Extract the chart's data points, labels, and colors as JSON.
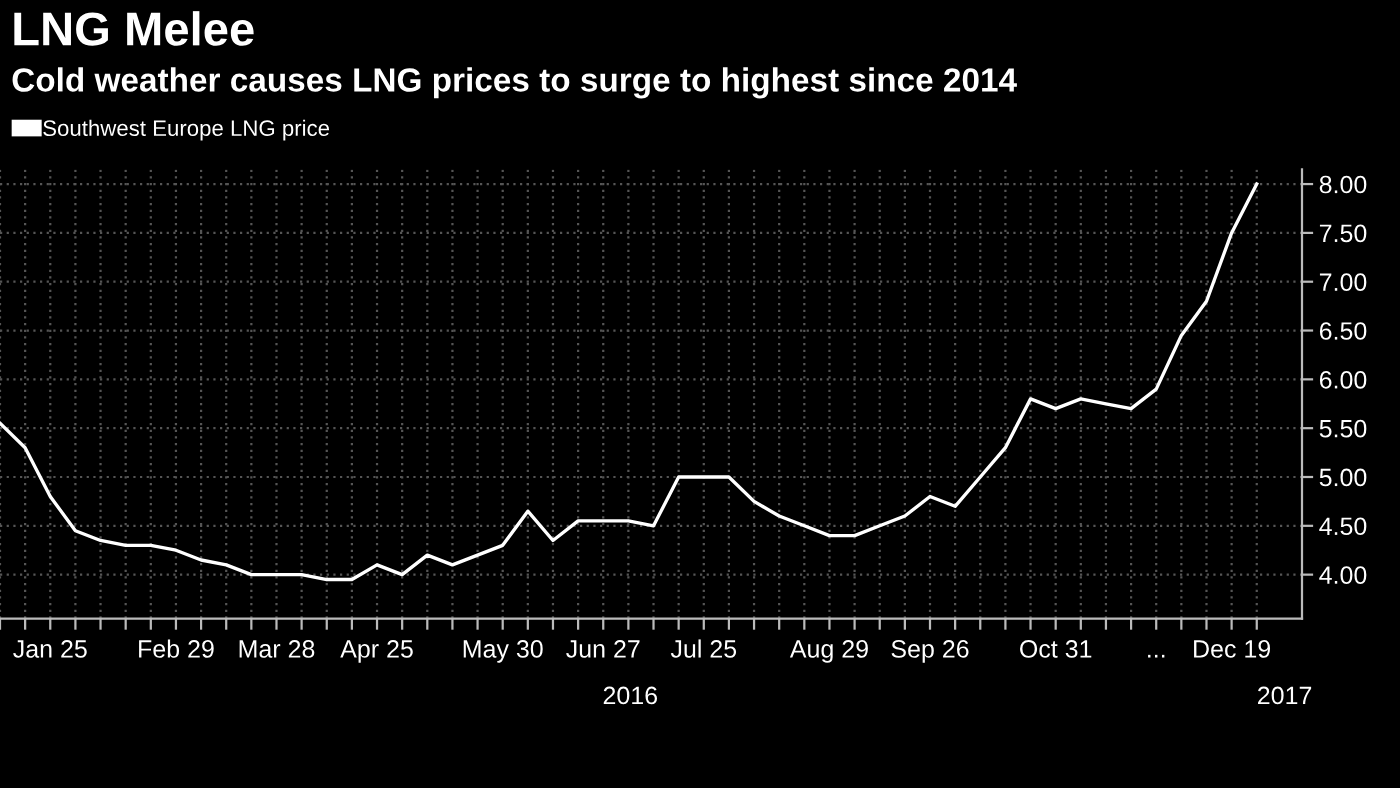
{
  "chart_data": {
    "type": "line",
    "title": "LNG Melee",
    "subtitle": "Cold weather causes LNG prices to surge to highest since 2014",
    "categories": [
      null,
      null,
      "Jan 25",
      null,
      null,
      null,
      null,
      "Feb 29",
      null,
      null,
      null,
      "Mar 28",
      null,
      null,
      null,
      "Apr 25",
      null,
      null,
      null,
      null,
      "May 30",
      null,
      null,
      null,
      "Jun 27",
      null,
      null,
      null,
      "Jul 25",
      null,
      null,
      null,
      null,
      "Aug 29",
      null,
      null,
      null,
      "Sep 26",
      null,
      null,
      null,
      null,
      "Oct 31",
      null,
      null,
      null,
      "...",
      null,
      null,
      "Dec 19",
      null
    ],
    "series": [
      {
        "name": "Southwest Europe LNG price",
        "color": "#ffffff",
        "values": [
          5.55,
          5.3,
          4.8,
          4.45,
          4.35,
          4.3,
          4.3,
          4.25,
          4.15,
          4.1,
          4.0,
          4.0,
          4.0,
          3.95,
          3.95,
          4.1,
          4.0,
          4.2,
          4.1,
          4.2,
          4.3,
          4.65,
          4.35,
          4.55,
          4.55,
          4.55,
          4.5,
          5.0,
          5.0,
          5.0,
          4.75,
          4.6,
          4.5,
          4.4,
          4.4,
          4.5,
          4.6,
          4.8,
          4.7,
          5.0,
          5.3,
          5.8,
          5.7,
          5.8,
          5.75,
          5.7,
          5.9,
          6.45,
          6.8,
          7.5,
          8.0
        ]
      }
    ],
    "ylim": [
      3.55,
      8.15
    ],
    "yticks": [
      {
        "value": 4,
        "label": "4.00"
      },
      {
        "value": 4.5,
        "label": "4.50"
      },
      {
        "value": 5,
        "label": "5.00"
      },
      {
        "value": 5.5,
        "label": "5.50"
      },
      {
        "value": 6,
        "label": "6.00"
      },
      {
        "value": 6.5,
        "label": "6.50"
      },
      {
        "value": 7,
        "label": "7.00"
      },
      {
        "value": 7.5,
        "label": "7.50"
      },
      {
        "value": 8,
        "label": "8.00"
      }
    ],
    "annotations": [
      "2016",
      "2017"
    ],
    "grid": true,
    "legend": "top left",
    "line_style": "solid",
    "marker": "none"
  }
}
